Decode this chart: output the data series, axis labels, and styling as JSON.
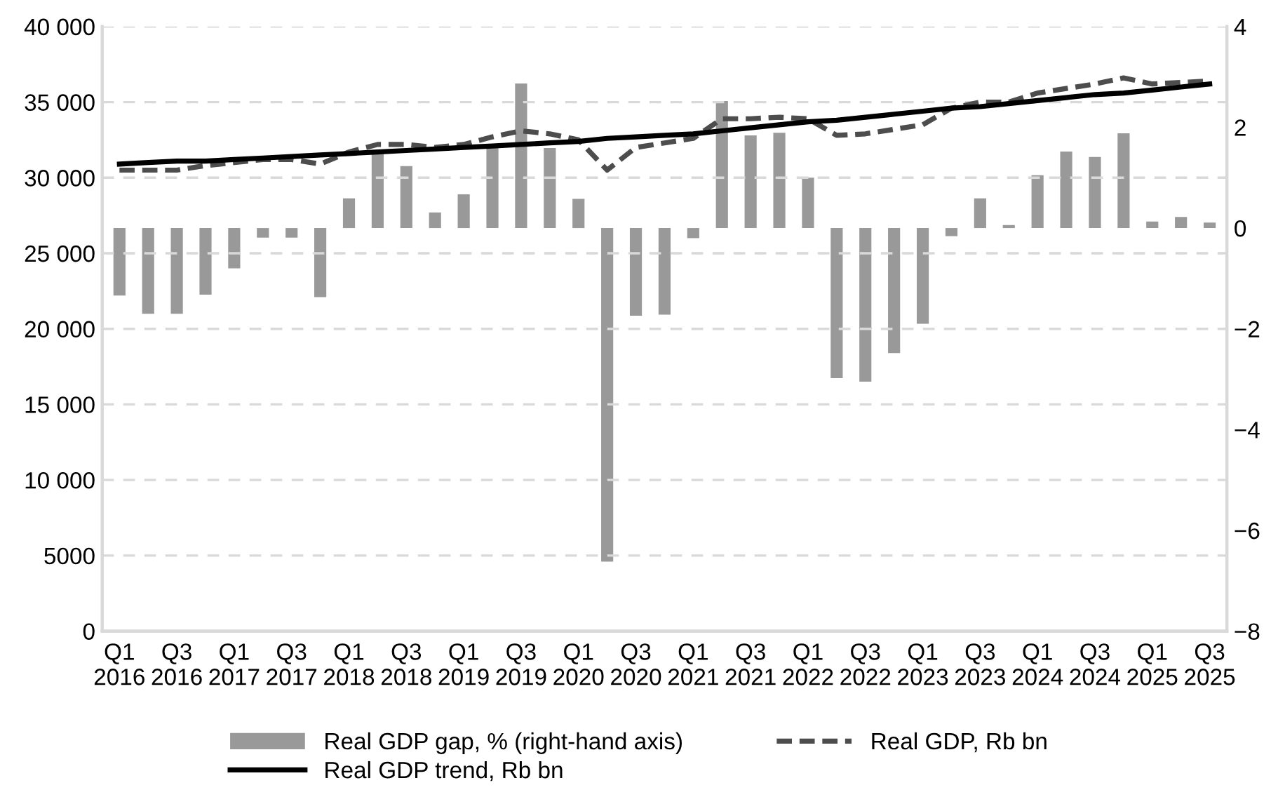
{
  "chart_data": {
    "type": "line",
    "categories": [
      "Q1\n2016",
      null,
      "Q3\n2016",
      null,
      "Q1\n2017",
      null,
      "Q3\n2017",
      null,
      "Q1\n2018",
      null,
      "Q3\n2018",
      null,
      "Q1\n2019",
      null,
      "Q3\n2019",
      null,
      "Q1\n2020",
      null,
      "Q3\n2020",
      null,
      "Q1\n2021",
      null,
      "Q3\n2021",
      null,
      "Q1\n2022",
      null,
      "Q3\n2022",
      null,
      "Q1\n2023",
      null,
      "Q3\n2023",
      null,
      "Q1\n2024",
      null,
      "Q3\n2024",
      null,
      "Q1\n2025",
      null,
      "Q3\n2025"
    ],
    "series": [
      {
        "name": "Real GDP gap, % (right-hand axis)",
        "type": "bar",
        "axis": "y2",
        "color": "#999999",
        "values": [
          -1.34,
          -1.7,
          -1.7,
          -1.32,
          -0.8,
          -0.19,
          -0.19,
          -1.37,
          0.59,
          1.48,
          1.23,
          0.31,
          0.67,
          1.62,
          2.87,
          1.59,
          0.58,
          -6.62,
          -1.74,
          -1.72,
          -0.2,
          2.52,
          1.84,
          1.89,
          1.0,
          -2.98,
          -3.05,
          -2.48,
          -1.9,
          -0.16,
          0.59,
          0.06,
          1.05,
          1.52,
          1.41,
          1.88,
          0.13,
          0.22,
          0.11
        ]
      },
      {
        "name": "Real GDP, Rb bn",
        "line_style": "dashed",
        "color": "#4d4d4d",
        "values": [
          30500,
          30500,
          30500,
          30800,
          31000,
          31200,
          31200,
          30900,
          31700,
          32200,
          32200,
          32000,
          32200,
          32700,
          33100,
          32900,
          32500,
          30500,
          32000,
          32300,
          32600,
          33900,
          33900,
          34000,
          33900,
          32800,
          32900,
          33200,
          33500,
          34600,
          35000,
          35000,
          35600,
          35900,
          36200,
          36600,
          36200,
          36300,
          36400
        ]
      },
      {
        "name": "Real GDP trend, Rb bn",
        "line_style": "solid",
        "color": "#000000",
        "values": [
          30900,
          31000,
          31100,
          31100,
          31200,
          31300,
          31400,
          31500,
          31600,
          31700,
          31800,
          31900,
          32000,
          32100,
          32200,
          32300,
          32400,
          32600,
          32700,
          32800,
          32900,
          33100,
          33300,
          33500,
          33700,
          33800,
          34000,
          34200,
          34400,
          34600,
          34700,
          34900,
          35100,
          35300,
          35500,
          35600,
          35800,
          36000,
          36200
        ]
      }
    ],
    "ylim": [
      0,
      40000
    ],
    "yticks": [
      0,
      5000,
      {
        "value": 10000,
        "label": "10 000"
      },
      {
        "value": 15000,
        "label": "15 000"
      },
      {
        "value": 20000,
        "label": "20 000"
      },
      {
        "value": 25000,
        "label": "25 000"
      },
      {
        "value": 30000,
        "label": "30 000"
      },
      {
        "value": 35000,
        "label": "35 000"
      },
      {
        "value": 40000,
        "label": "40 000"
      }
    ],
    "y2lim": [
      -8,
      4
    ],
    "y2ticks": [
      {
        "value": -8,
        "label": "−8"
      },
      {
        "value": -6,
        "label": "−6"
      },
      {
        "value": -4,
        "label": "−4"
      },
      {
        "value": -2,
        "label": "−2"
      },
      0,
      2,
      4
    ],
    "grid": "y",
    "legend": "bottom"
  }
}
